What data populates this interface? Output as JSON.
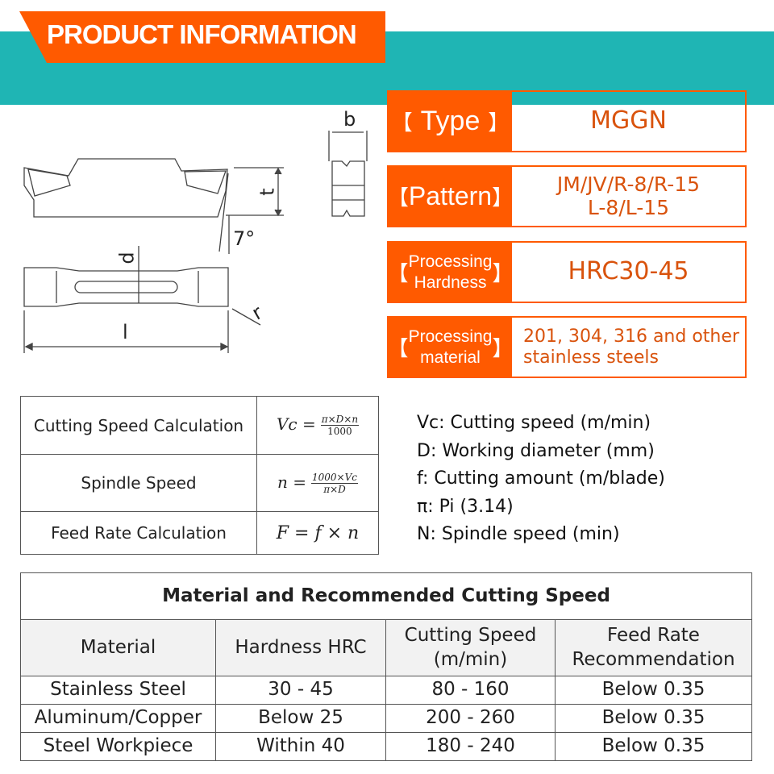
{
  "header": {
    "title": "PRODUCT INFORMATION",
    "colors": {
      "teal": "#1fb5b4",
      "orange": "#ff5a00"
    }
  },
  "diagram": {
    "labels": {
      "b": "b",
      "t": "t",
      "angle": "7°",
      "d": "d",
      "r": "r",
      "l": "l"
    }
  },
  "specs": [
    {
      "label_open": "【",
      "label": "Type",
      "label_close": "】",
      "value": "MGGN"
    },
    {
      "label_open": "【",
      "label": "Pattern",
      "label_close": "】",
      "value_line1": "JM/JV/R-8/R-15",
      "value_line2": "L-8/L-15"
    },
    {
      "label_open": "【",
      "label_line1": "Processing",
      "label_line2": "Hardness",
      "label_close": "】",
      "value": "HRC30-45"
    },
    {
      "label_open": "【",
      "label_line1": "Processing",
      "label_line2": "material",
      "label_close": "】",
      "value_line1": "201, 304, 316 and other",
      "value_line2": "stainless steels"
    }
  ],
  "formulas": [
    {
      "name": "Cutting Speed Calculation",
      "lhs": "Vc =",
      "num": "π×D×n",
      "den": "1000"
    },
    {
      "name": "Spindle Speed",
      "lhs": "n =",
      "num": "1000×Vc",
      "den": "π×D"
    },
    {
      "name": "Feed Rate Calculation",
      "expr": "F = f × n"
    }
  ],
  "definitions": [
    "Vc: Cutting speed (m/min)",
    "D: Working diameter (mm)",
    "f: Cutting amount (m/blade)",
    "π: Pi (3.14)",
    "N: Spindle speed (min)"
  ],
  "material_table": {
    "title": "Material and Recommended Cutting Speed",
    "headers": [
      "Material",
      "Hardness HRC",
      "Cutting Speed (m/min)",
      "Feed Rate Recommendation"
    ],
    "rows": [
      [
        "Stainless Steel",
        "30 - 45",
        "80 - 160",
        "Below 0.35"
      ],
      [
        "Aluminum/Copper",
        "Below 25",
        "200 - 260",
        "Below 0.35"
      ],
      [
        "Steel Workpiece",
        "Within 40",
        "180 - 240",
        "Below 0.35"
      ]
    ]
  }
}
